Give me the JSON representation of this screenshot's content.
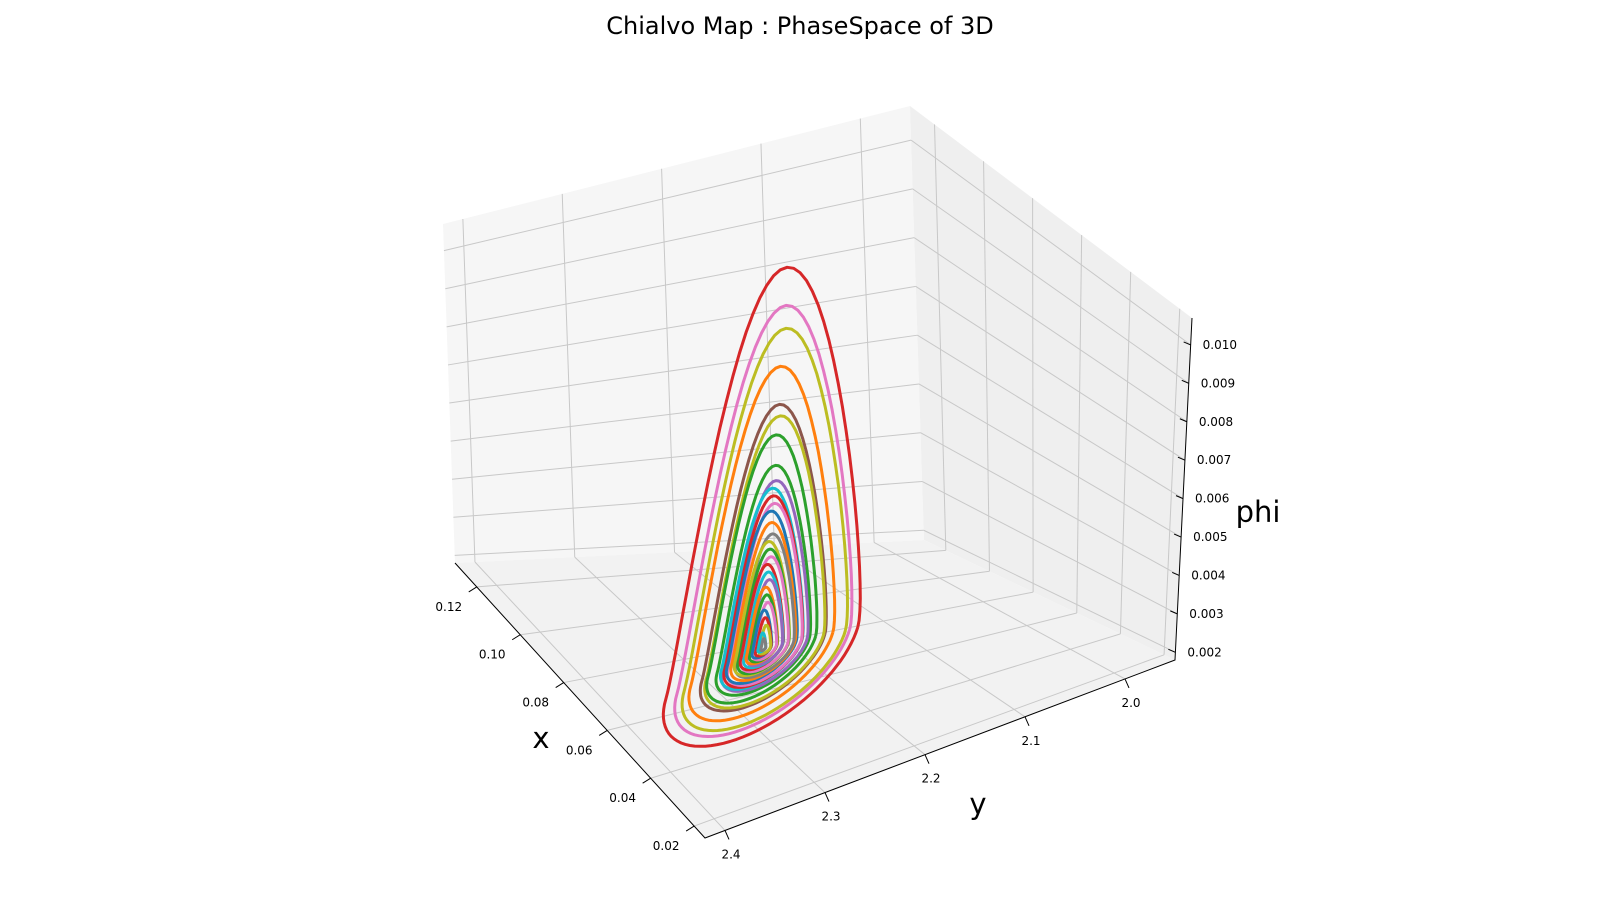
{
  "chart_data": {
    "type": "line",
    "subtype": "3d-phase-space",
    "title": "Chialvo Map : PhaseSpace of 3D",
    "xlabel": "x",
    "ylabel": "y",
    "zlabel": "phi",
    "x_ticks": [
      "0.12",
      "0.10",
      "0.08",
      "0.06",
      "0.04",
      "0.02"
    ],
    "y_ticks": [
      "2.4",
      "2.3",
      "2.2",
      "2.1",
      "2.0"
    ],
    "z_ticks": [
      "0.002",
      "0.003",
      "0.004",
      "0.005",
      "0.006",
      "0.007",
      "0.008",
      "0.009",
      "0.010"
    ],
    "xlim": [
      0.015,
      0.13
    ],
    "ylim": [
      1.95,
      2.42
    ],
    "zlim": [
      0.0018,
      0.0107
    ],
    "grid": true,
    "legend": "none",
    "series_colors": [
      "#1f77b4",
      "#ff7f0e",
      "#2ca02c",
      "#d62728",
      "#9467bd",
      "#8c564b",
      "#e377c2",
      "#7f7f7f",
      "#bcbd22",
      "#17becf"
    ],
    "trajectory_center": {
      "x": 0.07,
      "y": 2.24,
      "phi": 0.0031
    },
    "orbits": [
      {
        "color": "#d62728",
        "amp": 1.0
      },
      {
        "color": "#e377c2",
        "amp": 0.9
      },
      {
        "color": "#bcbd22",
        "amp": 0.84
      },
      {
        "color": "#ff7f0e",
        "amp": 0.74
      },
      {
        "color": "#8c564b",
        "amp": 0.64
      },
      {
        "color": "#bcbd22",
        "amp": 0.61
      },
      {
        "color": "#2ca02c",
        "amp": 0.56
      },
      {
        "color": "#2ca02c",
        "amp": 0.48
      },
      {
        "color": "#9467bd",
        "amp": 0.44
      },
      {
        "color": "#17becf",
        "amp": 0.42
      },
      {
        "color": "#d62728",
        "amp": 0.4
      },
      {
        "color": "#e377c2",
        "amp": 0.38
      },
      {
        "color": "#1f77b4",
        "amp": 0.36
      },
      {
        "color": "#ff7f0e",
        "amp": 0.33
      },
      {
        "color": "#7f7f7f",
        "amp": 0.3
      },
      {
        "color": "#bcbd22",
        "amp": 0.28
      },
      {
        "color": "#2ca02c",
        "amp": 0.26
      },
      {
        "color": "#e377c2",
        "amp": 0.24
      },
      {
        "color": "#d62728",
        "amp": 0.22
      },
      {
        "color": "#17becf",
        "amp": 0.2
      },
      {
        "color": "#9467bd",
        "amp": 0.18
      },
      {
        "color": "#ff7f0e",
        "amp": 0.16
      },
      {
        "color": "#2ca02c",
        "amp": 0.14
      },
      {
        "color": "#e377c2",
        "amp": 0.12
      },
      {
        "color": "#1f77b4",
        "amp": 0.1
      },
      {
        "color": "#d62728",
        "amp": 0.08
      },
      {
        "color": "#bcbd22",
        "amp": 0.06
      },
      {
        "color": "#17becf",
        "amp": 0.04
      },
      {
        "color": "#7f7f7f",
        "amp": 0.025
      }
    ]
  }
}
